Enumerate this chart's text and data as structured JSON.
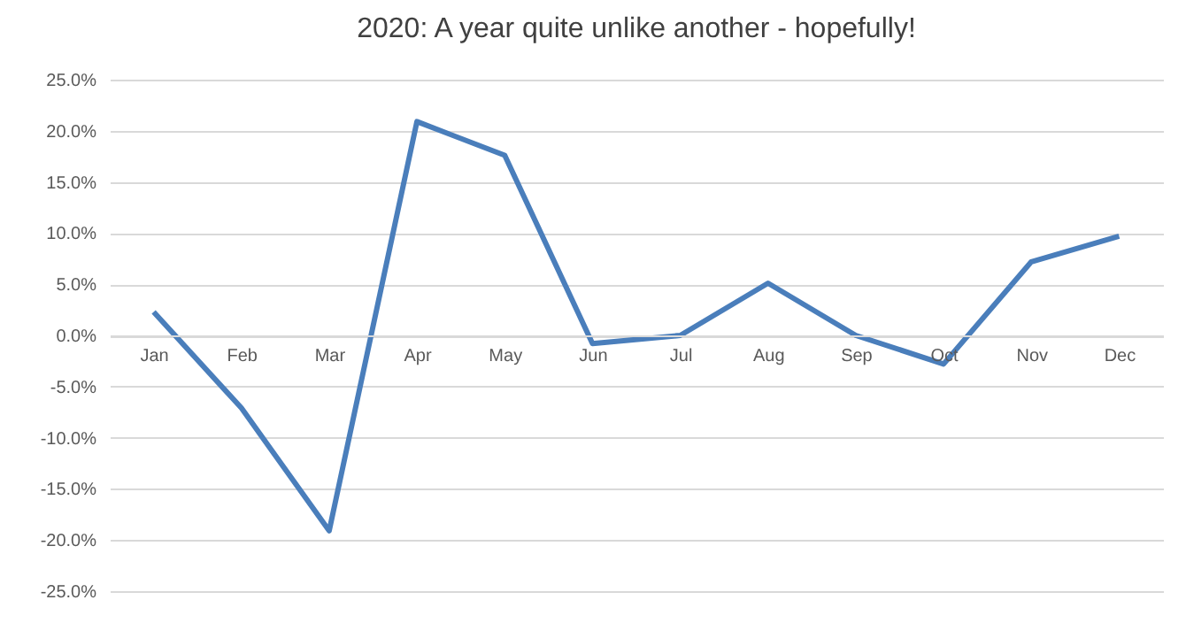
{
  "chart_data": {
    "type": "line",
    "title": "2020: A year quite unlike another - hopefully!",
    "categories": [
      "Jan",
      "Feb",
      "Mar",
      "Apr",
      "May",
      "Jun",
      "Jul",
      "Aug",
      "Sep",
      "Oct",
      "Nov",
      "Dec"
    ],
    "series": [
      {
        "color": "#4a7ebb",
        "values": [
          2.3,
          -7.1,
          -19.1,
          20.9,
          17.6,
          -0.8,
          0.0,
          5.1,
          0.0,
          -2.8,
          7.2,
          9.7
        ]
      }
    ],
    "ylim": [
      -25,
      25
    ],
    "yticks": [
      {
        "value": -25,
        "label": "-25.0%"
      },
      {
        "value": -20,
        "label": "-20.0%"
      },
      {
        "value": -15,
        "label": "-15.0%"
      },
      {
        "value": -10,
        "label": "-10.0%"
      },
      {
        "value": -5,
        "label": "-5.0%"
      },
      {
        "value": 0,
        "label": "0.0%"
      },
      {
        "value": 5,
        "label": "5.0%"
      },
      {
        "value": 10,
        "label": "10.0%"
      },
      {
        "value": 15,
        "label": "15.0%"
      },
      {
        "value": 20,
        "label": "20.0%"
      },
      {
        "value": 25,
        "label": "25.0%"
      }
    ],
    "grid": "y",
    "marker": "none",
    "line_style": "solid"
  }
}
